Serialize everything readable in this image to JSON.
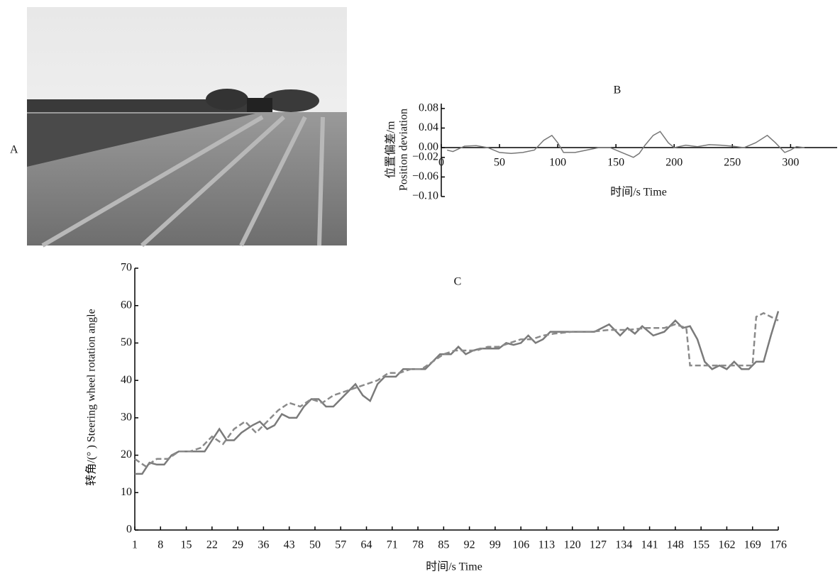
{
  "photo": {
    "label": "A"
  },
  "chart_data": [
    {
      "type": "line",
      "title": "B",
      "ylabel": [
        "位置偏差/m",
        "Position deviation"
      ],
      "xlabel": "时间/s Time",
      "x": [
        5,
        10,
        20,
        30,
        40,
        50,
        60,
        70,
        80,
        88,
        95,
        100,
        105,
        115,
        125,
        135,
        145,
        155,
        165,
        170,
        175,
        182,
        188,
        195,
        200,
        210,
        220,
        230,
        240,
        250,
        260,
        270,
        280,
        287,
        295,
        300,
        305,
        312
      ],
      "values": [
        -0.005,
        -0.008,
        0.003,
        0.004,
        0.0,
        -0.01,
        -0.012,
        -0.01,
        -0.005,
        0.015,
        0.025,
        0.01,
        -0.01,
        -0.01,
        -0.005,
        0.0,
        0.0,
        -0.01,
        -0.02,
        -0.012,
        0.005,
        0.025,
        0.033,
        0.01,
        0.0,
        0.005,
        0.002,
        0.006,
        0.005,
        0.003,
        0.0,
        0.01,
        0.025,
        0.01,
        -0.01,
        -0.005,
        0.002,
        0.0
      ],
      "color": "#777777",
      "xlim": [
        0,
        340
      ],
      "xticks": [
        0,
        50,
        100,
        150,
        200,
        250,
        300
      ],
      "ylim": [
        -0.1,
        0.09
      ],
      "yticks": [
        {
          "value": -0.1,
          "label": "−0.10"
        },
        {
          "value": -0.06,
          "label": "−0.06"
        },
        {
          "value": -0.02,
          "label": "−0.02"
        },
        {
          "value": 0,
          "label": "0.00"
        },
        0.04,
        0.08
      ]
    },
    {
      "type": "line",
      "title": "C",
      "ylabel": [
        "转角/(° ) Steering wheel rotation angle"
      ],
      "xlabel": "时间/s Time",
      "series": [
        {
          "color": "#7a7a7a",
          "dashed": false,
          "x": [
            1,
            3,
            5,
            7,
            9,
            11,
            13,
            17,
            20,
            22,
            24,
            26,
            28,
            30,
            33,
            35,
            37,
            39,
            41,
            43,
            45,
            47,
            49,
            51,
            53,
            55,
            57,
            59,
            61,
            63,
            65,
            67,
            69,
            72,
            74,
            77,
            80,
            82,
            84,
            87,
            89,
            91,
            93,
            95,
            98,
            100,
            102,
            104,
            106,
            108,
            110,
            112,
            114,
            118,
            122,
            126,
            130,
            133,
            135,
            137,
            139,
            142,
            145,
            148,
            150,
            152,
            154,
            156,
            158,
            160,
            162,
            164,
            166,
            168,
            170,
            172,
            174,
            176
          ],
          "values": [
            15,
            15,
            18,
            17.5,
            17.5,
            20,
            21,
            21,
            21,
            24,
            27,
            24,
            24,
            26,
            28,
            29,
            27,
            28,
            31,
            30,
            30,
            33,
            35,
            35,
            33,
            33,
            35,
            37,
            39,
            36,
            34.5,
            39,
            41,
            41,
            43,
            43,
            43,
            45,
            47,
            47,
            49,
            47,
            48,
            48.5,
            48.5,
            48.5,
            50,
            49.5,
            50,
            52,
            50,
            51,
            53,
            53,
            53,
            53,
            55,
            52,
            54,
            52.5,
            54.5,
            52,
            53,
            56,
            54,
            54.5,
            51,
            45,
            43,
            44,
            43,
            45,
            43,
            43,
            45,
            45,
            52,
            58.5
          ]
        },
        {
          "color": "#8a8a8a",
          "dashed": true,
          "x": [
            1,
            4,
            7,
            10,
            13,
            16,
            19,
            22,
            25,
            28,
            31,
            34,
            37,
            40,
            43,
            46,
            49,
            52,
            55,
            58,
            61,
            64,
            67,
            70,
            73,
            76,
            79,
            82,
            85,
            88,
            91,
            94,
            97,
            100,
            103,
            106,
            109,
            112,
            115,
            120,
            125,
            130,
            135,
            140,
            145,
            148,
            151,
            152,
            156,
            160,
            164,
            168,
            169,
            170,
            172,
            174,
            176
          ],
          "values": [
            19,
            17,
            19,
            19,
            21,
            21,
            22,
            25,
            23,
            27,
            29,
            26,
            29,
            32,
            34,
            33,
            35,
            34,
            36,
            37,
            38,
            39,
            40,
            42,
            42,
            43,
            43,
            45,
            47,
            48,
            48,
            48,
            49,
            49,
            50,
            51,
            51,
            52,
            52.5,
            53,
            53,
            53.5,
            53.5,
            54,
            54,
            55,
            54,
            44,
            44,
            44,
            44,
            44,
            44,
            57,
            58,
            57,
            56
          ]
        }
      ],
      "xlim": [
        1,
        176
      ],
      "xticks": [
        1,
        8,
        15,
        22,
        29,
        36,
        43,
        50,
        57,
        64,
        71,
        78,
        85,
        92,
        99,
        106,
        113,
        120,
        127,
        134,
        141,
        148,
        155,
        162,
        169,
        176
      ],
      "ylim": [
        0,
        70
      ],
      "yticks": [
        0,
        10,
        20,
        30,
        40,
        50,
        60,
        70
      ]
    }
  ]
}
